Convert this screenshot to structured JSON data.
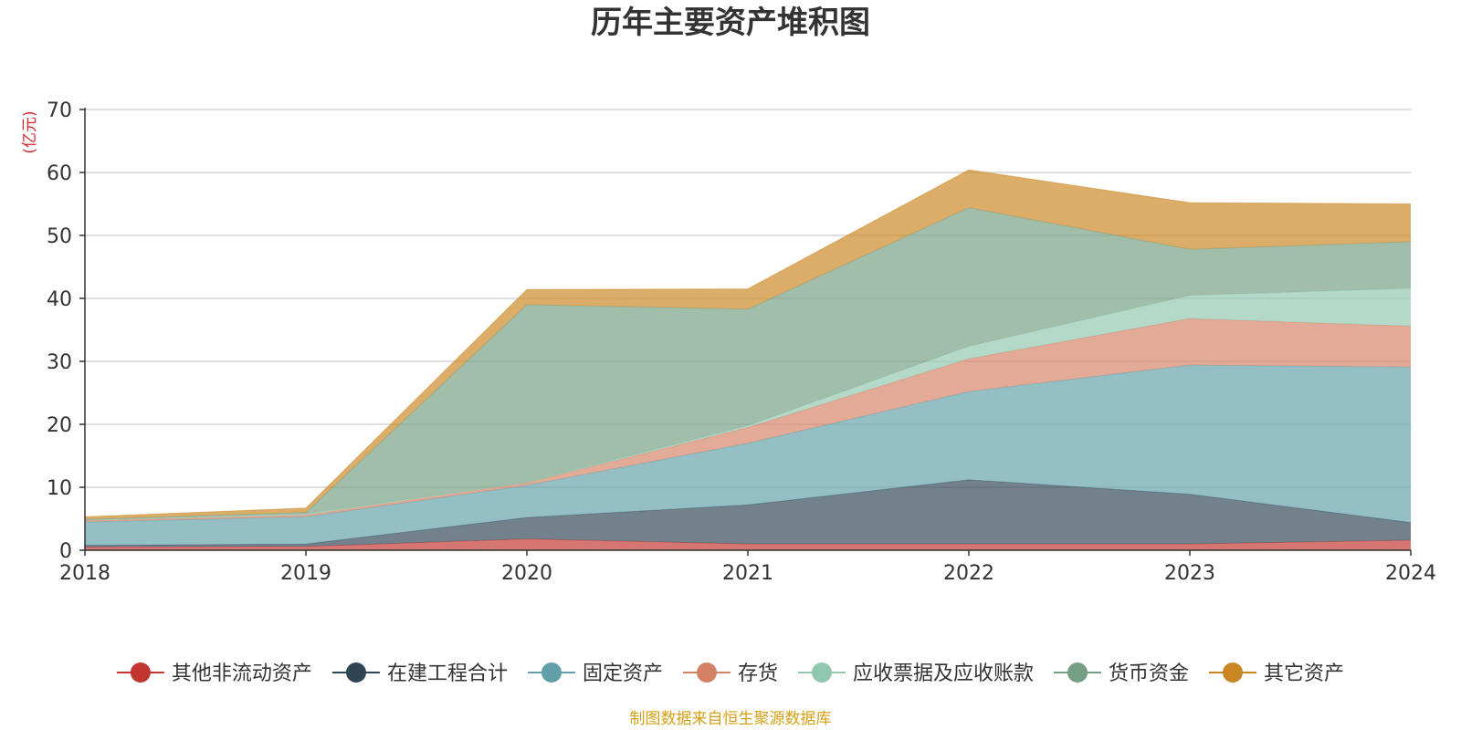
{
  "chart_data": {
    "type": "area",
    "stacked": true,
    "title": "历年主要资产堆积图",
    "unit_label": "(亿元)",
    "source": "制图数据来自恒生聚源数据库",
    "x": [
      "2018",
      "2019",
      "2020",
      "2021",
      "2022",
      "2023",
      "2024"
    ],
    "ylim": [
      0,
      70
    ],
    "yticks": [
      "0",
      "10",
      "20",
      "30",
      "40",
      "50",
      "60",
      "70"
    ],
    "grid": true,
    "legend_position": "bottom",
    "series": [
      {
        "name": "其他非流动资产",
        "color": "#c23531",
        "values": [
          0.5,
          0.6,
          1.8,
          1.0,
          1.0,
          1.0,
          1.6
        ]
      },
      {
        "name": "在建工程合计",
        "color": "#2f4554",
        "values": [
          0.3,
          0.4,
          3.4,
          6.2,
          10.2,
          7.9,
          2.8
        ]
      },
      {
        "name": "固定资产",
        "color": "#61a0a8",
        "values": [
          3.7,
          4.3,
          5.1,
          9.8,
          14.0,
          20.5,
          24.7
        ]
      },
      {
        "name": "存货",
        "color": "#d48265",
        "values": [
          0.2,
          0.3,
          0.4,
          2.5,
          5.2,
          7.4,
          6.5
        ]
      },
      {
        "name": "应收票据及应收账款",
        "color": "#91c7ae",
        "values": [
          0.1,
          0.2,
          0.1,
          0.3,
          2.0,
          3.7,
          6.0
        ]
      },
      {
        "name": "货币资金",
        "color": "#749f83",
        "values": [
          0.1,
          0.2,
          28.2,
          18.5,
          22.0,
          7.3,
          7.4
        ]
      },
      {
        "name": "其它资产",
        "color": "#ca8622",
        "values": [
          0.4,
          0.7,
          2.4,
          3.2,
          6.0,
          7.4,
          6.0
        ]
      }
    ]
  }
}
